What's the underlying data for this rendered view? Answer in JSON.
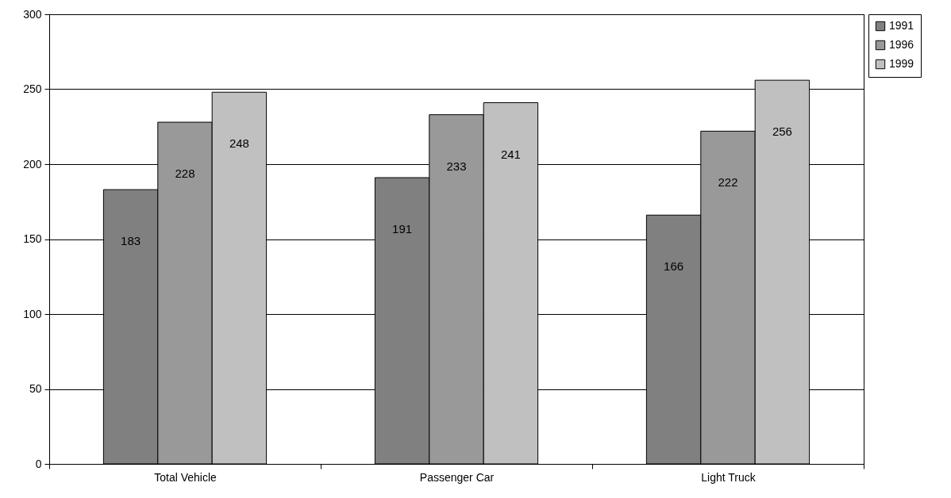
{
  "chart_data": {
    "type": "bar",
    "categories": [
      "Total Vehicle",
      "Passenger Car",
      "Light Truck"
    ],
    "series": [
      {
        "name": "1991",
        "color": "#808080",
        "values": [
          183,
          191,
          166
        ]
      },
      {
        "name": "1996",
        "color": "#999999",
        "values": [
          228,
          233,
          222
        ]
      },
      {
        "name": "1999",
        "color": "#c0c0c0",
        "values": [
          248,
          241,
          256
        ]
      }
    ],
    "ylim": [
      0,
      300
    ],
    "yticks": [
      0,
      50,
      100,
      150,
      200,
      250,
      300
    ],
    "grid": "y",
    "legend": "right",
    "data_labels": true
  }
}
